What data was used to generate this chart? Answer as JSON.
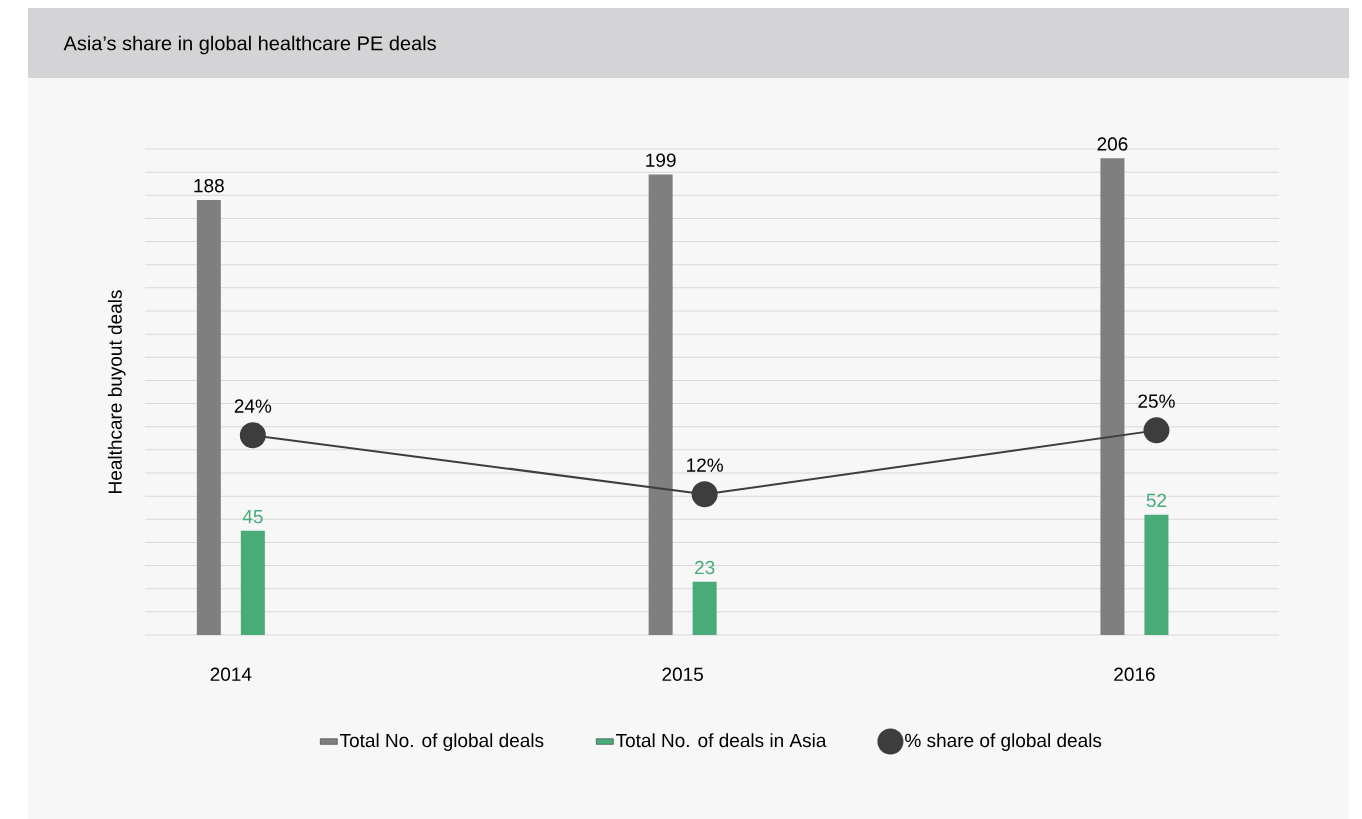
{
  "chart_data": {
    "type": "bar",
    "title": "Asia’s share in global healthcare PE deals",
    "ylabel": "Healthcare buyout deals",
    "categories": [
      "2014",
      "2015",
      "2016"
    ],
    "series": [
      {
        "name": "Total No. of global deals",
        "color": "#7f7f7f",
        "values": [
          188,
          199,
          206
        ]
      },
      {
        "name": "Total No. of deals in Asia",
        "color": "#48ab78",
        "values": [
          45,
          23,
          52
        ]
      },
      {
        "name": "% share of global deals",
        "color": "#3d3d3d",
        "type": "line",
        "axis": "y2",
        "values": [
          24,
          12,
          25
        ],
        "value_labels": [
          "24%",
          "12%",
          "25%"
        ]
      }
    ],
    "ylim": [
      0,
      210
    ],
    "yticks": [
      {
        "value": 0,
        "label": null
      },
      {
        "value": 10,
        "label": null
      },
      {
        "value": 20,
        "label": null
      },
      {
        "value": 30,
        "label": null
      },
      {
        "value": 40,
        "label": null
      },
      {
        "value": 50,
        "label": null
      },
      {
        "value": 60,
        "label": null
      },
      {
        "value": 70,
        "label": null
      },
      {
        "value": 80,
        "label": null
      },
      {
        "value": 90,
        "label": null
      },
      {
        "value": 100,
        "label": null
      },
      {
        "value": 110,
        "label": null
      },
      {
        "value": 120,
        "label": null
      },
      {
        "value": 130,
        "label": null
      },
      {
        "value": 140,
        "label": null
      },
      {
        "value": 150,
        "label": null
      },
      {
        "value": 160,
        "label": null
      },
      {
        "value": 170,
        "label": null
      },
      {
        "value": 180,
        "label": null
      },
      {
        "value": 190,
        "label": null
      },
      {
        "value": 200,
        "label": null
      },
      {
        "value": 210,
        "label": null
      }
    ],
    "grid": "y",
    "tick_labels": "x",
    "legend": "bottom",
    "data_labels": true,
    "marker": "circle",
    "line_style": "solid"
  }
}
